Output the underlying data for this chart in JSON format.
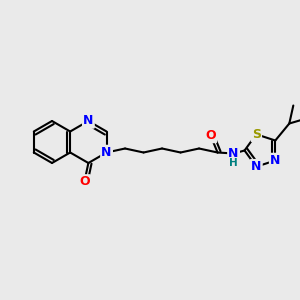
{
  "bg_color": "#eaeaea",
  "bond_color": "#000000",
  "bond_width": 1.5,
  "atom_colors": {
    "N": "#0000ff",
    "O": "#ff0000",
    "S": "#999900",
    "H": "#008080",
    "C": "#000000"
  },
  "font_size_atom": 9,
  "font_size_small": 7.5
}
